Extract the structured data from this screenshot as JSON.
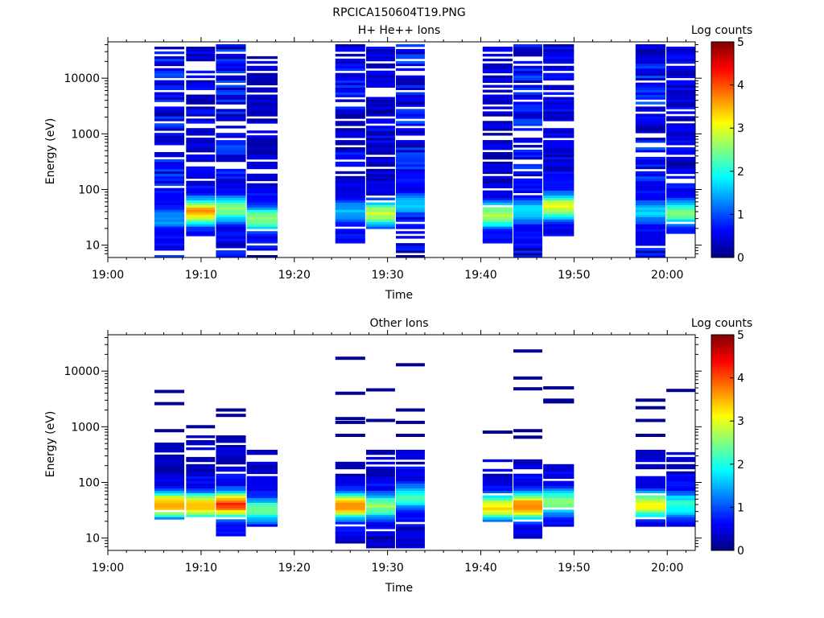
{
  "figure_title": "RPCICA150604T19.PNG",
  "chart_data": [
    {
      "type": "heatmap",
      "title": "H+ He++ Ions",
      "xlabel": "Time",
      "ylabel": "Energy (eV)",
      "yscale": "log",
      "x_ticks": [
        "19:00",
        "19:10",
        "19:20",
        "19:30",
        "19:40",
        "19:50",
        "20:00"
      ],
      "x_range": [
        "19:00",
        "20:03"
      ],
      "y_ticks": [
        "10",
        "100",
        "1000",
        "10000"
      ],
      "y_range": [
        6,
        45000
      ],
      "colorbar": {
        "label": "Log counts",
        "ticks": [
          "0",
          "1",
          "2",
          "3",
          "4",
          "5"
        ],
        "range": [
          0,
          5
        ]
      },
      "columns": [
        {
          "t0": 5.0,
          "t1": 8.2,
          "emin": 6,
          "emax": 40000,
          "high": 0.9,
          "peak": {
            "e": 30,
            "v": 1.4
          }
        },
        {
          "t0": 8.4,
          "t1": 11.5,
          "emin": 14,
          "emax": 38000,
          "high": 0.6,
          "peak": {
            "e": 40,
            "v": 3.6
          }
        },
        {
          "t0": 11.6,
          "t1": 14.8,
          "emin": 6,
          "emax": 40000,
          "high": 0.9,
          "peak": {
            "e": 45,
            "v": 2.6
          }
        },
        {
          "t0": 14.9,
          "t1": 18.2,
          "emin": 6,
          "emax": 25000,
          "high": 0.4,
          "peak": {
            "e": 30,
            "v": 2.6
          }
        },
        {
          "t0": 24.4,
          "t1": 27.6,
          "emin": 11,
          "emax": 40000,
          "high": 0.8,
          "peak": {
            "e": 40,
            "v": 1.6
          }
        },
        {
          "t0": 27.7,
          "t1": 30.8,
          "emin": 20,
          "emax": 38000,
          "high": 0.6,
          "peak": {
            "e": 38,
            "v": 2.8
          }
        },
        {
          "t0": 30.9,
          "t1": 34.0,
          "emin": 6,
          "emax": 40000,
          "high": 0.9,
          "peak": {
            "e": 55,
            "v": 1.6
          }
        },
        {
          "t0": 40.2,
          "t1": 43.4,
          "emin": 11,
          "emax": 40000,
          "high": 0.5,
          "peak": {
            "e": 35,
            "v": 2.8
          }
        },
        {
          "t0": 43.5,
          "t1": 46.6,
          "emin": 6,
          "emax": 40000,
          "high": 0.9,
          "peak": {
            "e": 40,
            "v": 1.8
          }
        },
        {
          "t0": 46.7,
          "t1": 50.0,
          "emin": 15,
          "emax": 40000,
          "high": 0.6,
          "peak": {
            "e": 50,
            "v": 3.0
          }
        },
        {
          "t0": 56.6,
          "t1": 59.8,
          "emin": 6,
          "emax": 40000,
          "high": 1.0,
          "peak": {
            "e": 40,
            "v": 1.6
          }
        },
        {
          "t0": 59.9,
          "t1": 63.0,
          "emin": 16,
          "emax": 38000,
          "high": 0.6,
          "peak": {
            "e": 38,
            "v": 2.4
          }
        }
      ]
    },
    {
      "type": "heatmap",
      "title": "Other Ions",
      "xlabel": "Time",
      "ylabel": "Energy (eV)",
      "yscale": "log",
      "x_ticks": [
        "19:00",
        "19:10",
        "19:20",
        "19:30",
        "19:40",
        "19:50",
        "20:00"
      ],
      "x_range": [
        "19:00",
        "20:03"
      ],
      "y_ticks": [
        "10",
        "100",
        "1000",
        "10000"
      ],
      "y_range": [
        6,
        45000
      ],
      "colorbar": {
        "label": "Log counts",
        "ticks": [
          "0",
          "1",
          "2",
          "3",
          "4",
          "5"
        ],
        "range": [
          0,
          5
        ]
      },
      "columns": [
        {
          "t0": 5.0,
          "t1": 8.2,
          "emin": 22,
          "emax": 500,
          "high": 0.4,
          "sparse": [
            850,
            2600,
            4300
          ],
          "peak": {
            "e": 40,
            "v": 3.7
          }
        },
        {
          "t0": 8.4,
          "t1": 11.5,
          "emin": 22,
          "emax": 700,
          "high": 0.4,
          "sparse": [
            1000
          ],
          "peak": {
            "e": 38,
            "v": 3.6
          }
        },
        {
          "t0": 11.6,
          "t1": 14.8,
          "emin": 10,
          "emax": 700,
          "high": 0.4,
          "sparse": [
            1600,
            2000
          ],
          "peak": {
            "e": 40,
            "v": 4.1
          }
        },
        {
          "t0": 14.9,
          "t1": 18.2,
          "emin": 16,
          "emax": 420,
          "high": 0.4,
          "sparse": [],
          "peak": {
            "e": 32,
            "v": 2.4
          }
        },
        {
          "t0": 24.4,
          "t1": 27.6,
          "emin": 6,
          "emax": 230,
          "high": 0.4,
          "sparse": [
            700,
            1200,
            1400,
            4000,
            17000
          ],
          "peak": {
            "e": 38,
            "v": 3.6
          }
        },
        {
          "t0": 27.7,
          "t1": 30.8,
          "emin": 6,
          "emax": 370,
          "high": 0.4,
          "sparse": [
            1300,
            4600
          ],
          "peak": {
            "e": 38,
            "v": 2.6
          }
        },
        {
          "t0": 30.9,
          "t1": 34.0,
          "emin": 6,
          "emax": 400,
          "high": 0.5,
          "sparse": [
            700,
            1200,
            2000,
            13000
          ],
          "peak": {
            "e": 55,
            "v": 2.2
          }
        },
        {
          "t0": 40.2,
          "t1": 43.4,
          "emin": 20,
          "emax": 250,
          "high": 0.5,
          "sparse": [
            800
          ],
          "peak": {
            "e": 36,
            "v": 3.3
          }
        },
        {
          "t0": 43.5,
          "t1": 46.6,
          "emin": 9,
          "emax": 250,
          "high": 0.5,
          "sparse": [
            650,
            850,
            4800,
            7500,
            23000
          ],
          "peak": {
            "e": 38,
            "v": 3.8
          }
        },
        {
          "t0": 46.7,
          "t1": 50.0,
          "emin": 16,
          "emax": 230,
          "high": 0.5,
          "sparse": [
            2800,
            3000,
            5000
          ],
          "peak": {
            "e": 45,
            "v": 2.6
          }
        },
        {
          "t0": 56.6,
          "t1": 59.8,
          "emin": 16,
          "emax": 450,
          "high": 0.4,
          "sparse": [
            700,
            1300,
            2200,
            3000
          ],
          "peak": {
            "e": 40,
            "v": 3.2
          }
        },
        {
          "t0": 59.9,
          "t1": 63.0,
          "emin": 16,
          "emax": 350,
          "high": 0.4,
          "sparse": [
            4500
          ],
          "peak": {
            "e": 40,
            "v": 2.2
          }
        }
      ]
    }
  ]
}
